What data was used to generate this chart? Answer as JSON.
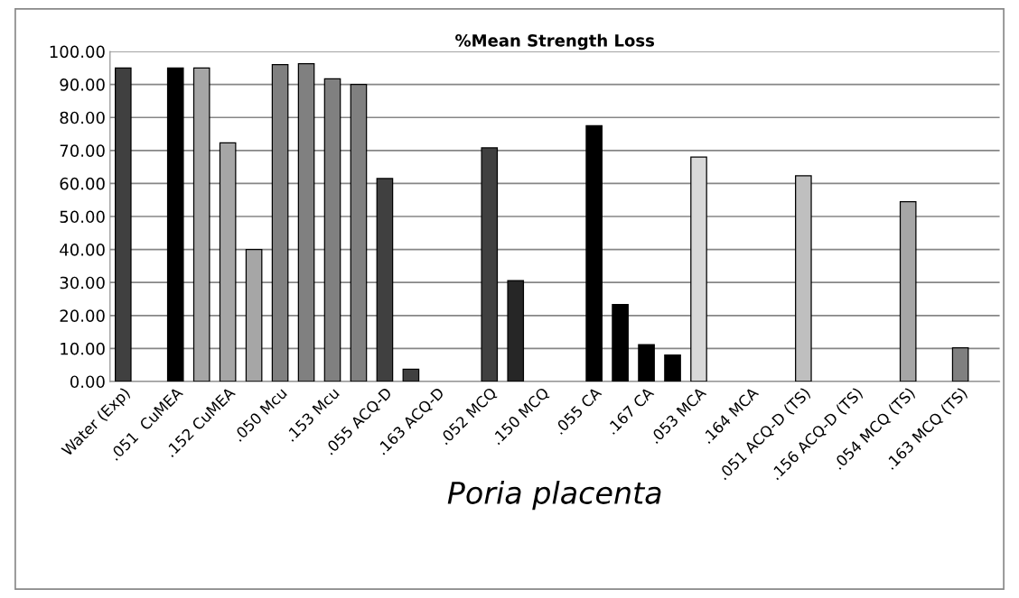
{
  "chart_data": {
    "type": "bar",
    "title": "%Mean Strength Loss",
    "xlabel": "Poria placenta",
    "categories": [
      "Water (Exp)",
      null,
      ".051  CuMEA",
      null,
      ".152 CuMEA",
      null,
      ".050 Mcu",
      null,
      ".153 Mcu",
      null,
      ".055 ACQ-D",
      null,
      ".163 ACQ-D",
      null,
      ".052 MCQ",
      null,
      ".150 MCQ",
      null,
      ".055 CA",
      null,
      ".167 CA",
      null,
      ".053 MCA",
      null,
      ".164 MCA",
      null,
      ".051 ACQ-D (TS)",
      null,
      ".156 ACQ-D (TS)",
      null,
      ".054 MCQ (TS)",
      null,
      ".163 MCQ (TS)",
      null
    ],
    "values": [
      95.0,
      null,
      95.0,
      95.0,
      72.3,
      40.0,
      96.0,
      96.3,
      91.7,
      90.0,
      61.5,
      3.7,
      null,
      null,
      70.8,
      30.6,
      null,
      null,
      77.5,
      23.3,
      11.2,
      8.0,
      68.0,
      null,
      null,
      null,
      62.3,
      null,
      null,
      null,
      54.5,
      null,
      10.2,
      null
    ],
    "colors": [
      "#404040",
      null,
      "#000000",
      "#a6a6a6",
      "#a6a6a6",
      "#a6a6a6",
      "#808080",
      "#808080",
      "#808080",
      "#808080",
      "#404040",
      "#404040",
      null,
      null,
      "#404040",
      "#262626",
      null,
      null,
      "#000000",
      "#000000",
      "#000000",
      "#000000",
      "#d9d9d9",
      null,
      null,
      null,
      "#bfbfbf",
      null,
      null,
      null,
      "#a6a6a6",
      null,
      "#808080",
      null
    ],
    "ylim": [
      0,
      100
    ],
    "yticks": [
      {
        "value": 0,
        "label": "0.00"
      },
      {
        "value": 10,
        "label": "10.00"
      },
      {
        "value": 20,
        "label": "20.00"
      },
      {
        "value": 30,
        "label": "30.00"
      },
      {
        "value": 40,
        "label": "40.00"
      },
      {
        "value": 50,
        "label": "50.00"
      },
      {
        "value": 60,
        "label": "60.00"
      },
      {
        "value": 70,
        "label": "70.00"
      },
      {
        "value": 80,
        "label": "80.00"
      },
      {
        "value": 90,
        "label": "90.00"
      },
      {
        "value": 100,
        "label": "100.00"
      }
    ],
    "grid": "y",
    "legend": false
  }
}
